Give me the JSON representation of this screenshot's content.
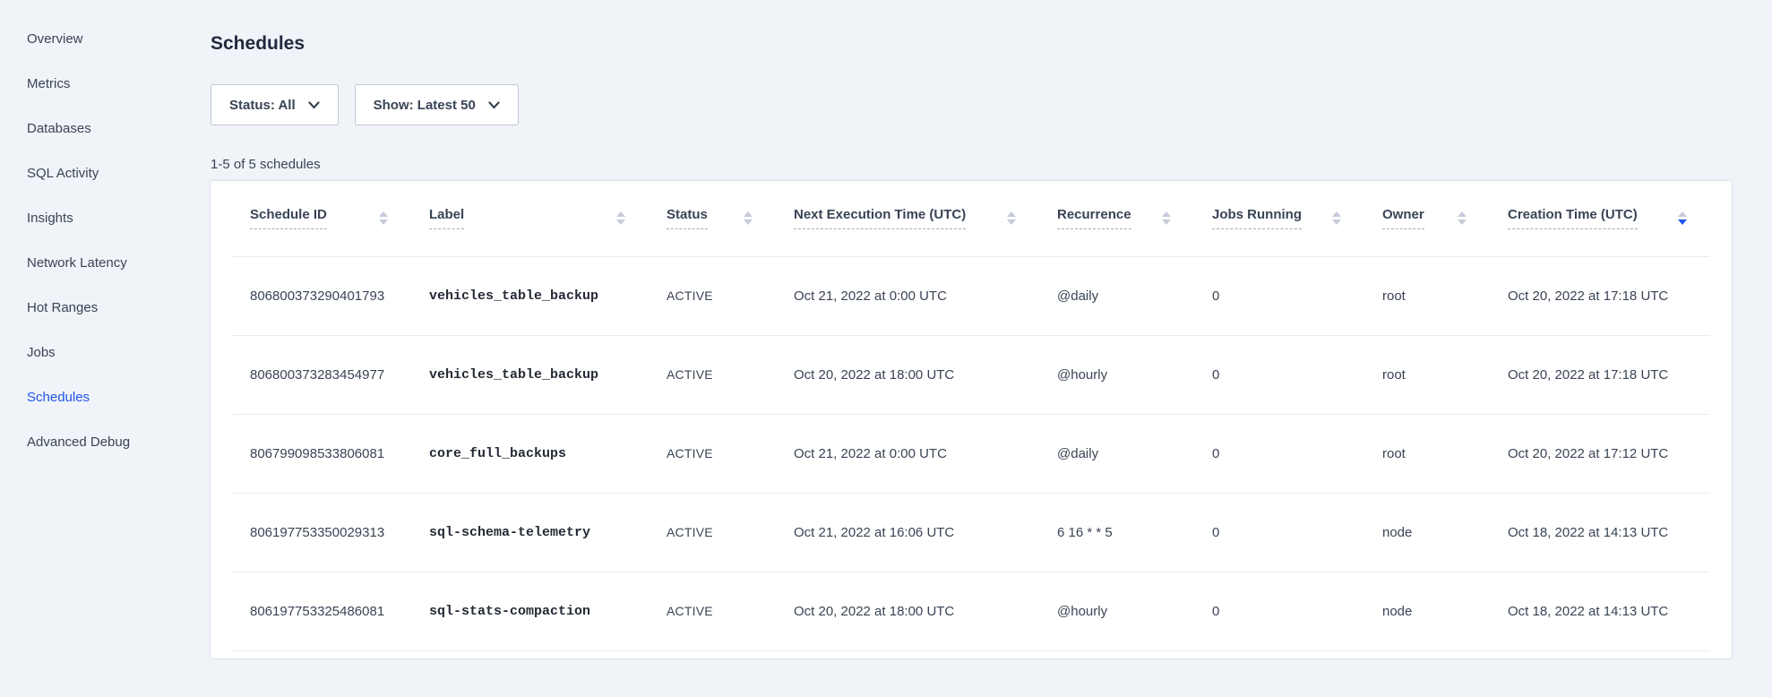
{
  "colors": {
    "accent": "#2155EB",
    "page_bg": "#F0F3F8",
    "card_bg": "#FFFFFF",
    "text_primary": "#394455",
    "heading": "#1F2A3D",
    "border": "#C0C6D0",
    "divider": "#E7ECF3",
    "sort_inactive": "#C5CBD9"
  },
  "sidebar": {
    "items": [
      {
        "label": "Overview",
        "active": false
      },
      {
        "label": "Metrics",
        "active": false
      },
      {
        "label": "Databases",
        "active": false
      },
      {
        "label": "SQL Activity",
        "active": false
      },
      {
        "label": "Insights",
        "active": false
      },
      {
        "label": "Network Latency",
        "active": false
      },
      {
        "label": "Hot Ranges",
        "active": false
      },
      {
        "label": "Jobs",
        "active": false
      },
      {
        "label": "Schedules",
        "active": true
      },
      {
        "label": "Advanced Debug",
        "active": false
      }
    ]
  },
  "main": {
    "title": "Schedules",
    "results_count": "1-5 of 5 schedules"
  },
  "filters": {
    "status_label": "Status: All",
    "show_label": "Show: Latest 50"
  },
  "table": {
    "columns": [
      {
        "label": "Schedule ID",
        "sort": "none"
      },
      {
        "label": "Label",
        "sort": "none"
      },
      {
        "label": "Status",
        "sort": "none"
      },
      {
        "label": "Next Execution Time (UTC)",
        "sort": "none"
      },
      {
        "label": "Recurrence",
        "sort": "none"
      },
      {
        "label": "Jobs Running",
        "sort": "none"
      },
      {
        "label": "Owner",
        "sort": "none"
      },
      {
        "label": "Creation Time (UTC)",
        "sort": "desc"
      }
    ],
    "rows": [
      {
        "id": "806800373290401793",
        "label": "vehicles_table_backup",
        "status": "ACTIVE",
        "next_execution": "Oct 21, 2022 at 0:00 UTC",
        "recurrence": "@daily",
        "jobs_running": "0",
        "owner": "root",
        "creation_time": "Oct 20, 2022 at 17:18 UTC"
      },
      {
        "id": "806800373283454977",
        "label": "vehicles_table_backup",
        "status": "ACTIVE",
        "next_execution": "Oct 20, 2022 at 18:00 UTC",
        "recurrence": "@hourly",
        "jobs_running": "0",
        "owner": "root",
        "creation_time": "Oct 20, 2022 at 17:18 UTC"
      },
      {
        "id": "806799098533806081",
        "label": "core_full_backups",
        "status": "ACTIVE",
        "next_execution": "Oct 21, 2022 at 0:00 UTC",
        "recurrence": "@daily",
        "jobs_running": "0",
        "owner": "root",
        "creation_time": "Oct 20, 2022 at 17:12 UTC"
      },
      {
        "id": "806197753350029313",
        "label": "sql-schema-telemetry",
        "status": "ACTIVE",
        "next_execution": "Oct 21, 2022 at 16:06 UTC",
        "recurrence": "6 16 * * 5",
        "jobs_running": "0",
        "owner": "node",
        "creation_time": "Oct 18, 2022 at 14:13 UTC"
      },
      {
        "id": "806197753325486081",
        "label": "sql-stats-compaction",
        "status": "ACTIVE",
        "next_execution": "Oct 20, 2022 at 18:00 UTC",
        "recurrence": "@hourly",
        "jobs_running": "0",
        "owner": "node",
        "creation_time": "Oct 18, 2022 at 14:13 UTC"
      }
    ]
  }
}
